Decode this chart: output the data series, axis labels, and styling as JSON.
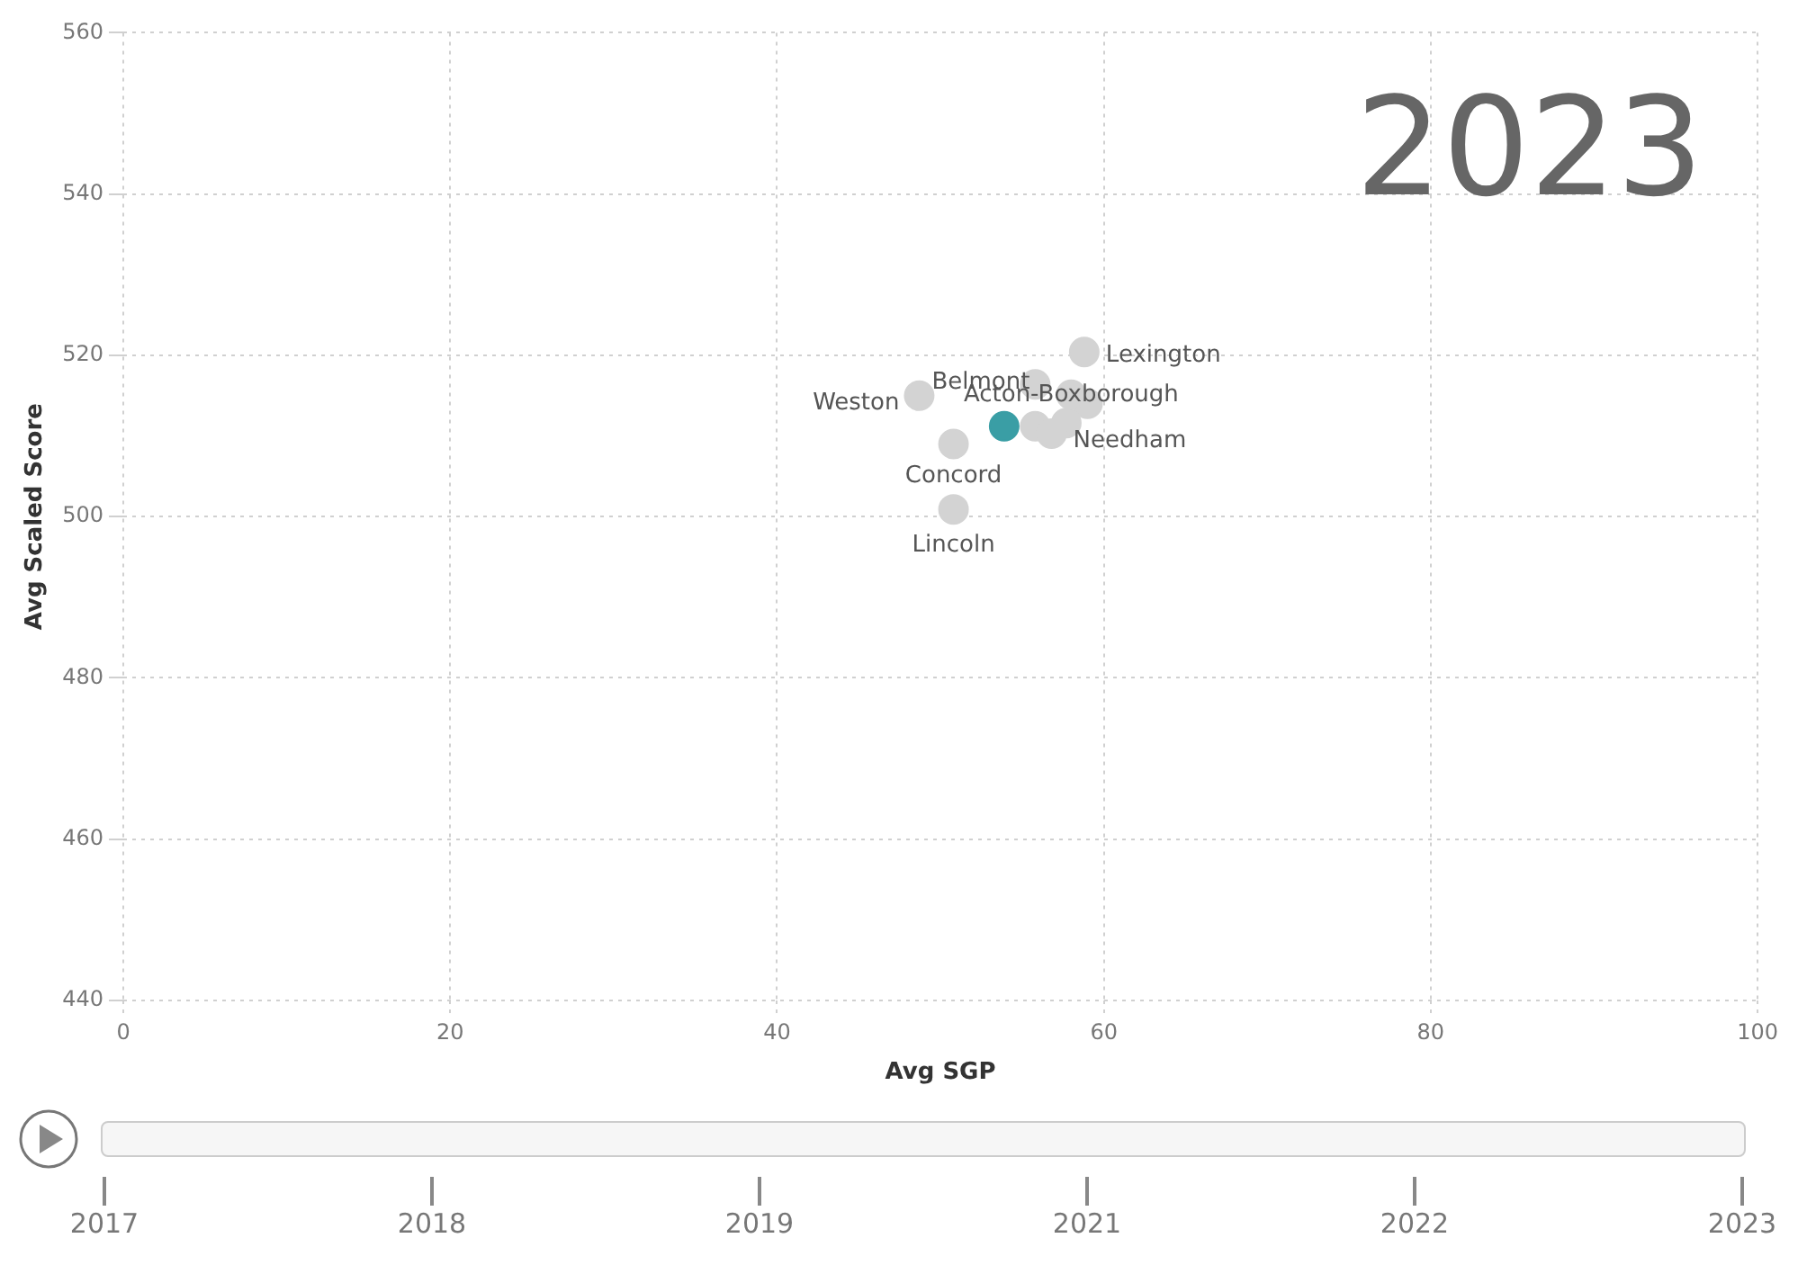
{
  "chart_data": {
    "type": "scatter",
    "xlabel": "Avg SGP",
    "ylabel": "Avg Scaled Score",
    "xlim": [
      0,
      100
    ],
    "xticks": [
      0,
      20,
      40,
      60,
      80,
      100
    ],
    "ylim": [
      440,
      560
    ],
    "yticks": [
      440,
      460,
      480,
      500,
      520,
      540,
      560
    ],
    "grid": true,
    "legend": false,
    "marker": "circle",
    "series": [
      {
        "name": "Lexington",
        "color": "#d3d3d3",
        "x": [
          58.8
        ],
        "values": [
          520.4
        ]
      },
      {
        "name": "Belmont",
        "color": "#d3d3d3",
        "x": [
          55.8
        ],
        "values": [
          516.4
        ]
      },
      {
        "name": "Acton-Boxborough",
        "color": "#d3d3d3",
        "x": [
          58
        ],
        "values": [
          515.1
        ]
      },
      {
        "name": "Weston",
        "color": "#d3d3d3",
        "x": [
          48.7
        ],
        "values": [
          515
        ]
      },
      {
        "name": "Needham",
        "color": "#d3d3d3",
        "x": [
          56.8
        ],
        "values": [
          510.3
        ]
      },
      {
        "name": "Concord",
        "color": "#d3d3d3",
        "x": [
          50.8
        ],
        "values": [
          509
        ]
      },
      {
        "name": "Lincoln",
        "color": "#d3d3d3",
        "x": [
          50.8
        ],
        "values": [
          500.9
        ]
      },
      {
        "color": "#d3d3d3",
        "x": [
          59,
          55.8,
          57.7
        ],
        "values": [
          514,
          511.2,
          511.6
        ]
      },
      {
        "color": "#3a9ea5",
        "x": [
          53.9
        ],
        "values": [
          511.2
        ]
      }
    ],
    "annotations": [
      "2023",
      "2017",
      "2018",
      "2019",
      "2021",
      "2022",
      "2023"
    ]
  }
}
